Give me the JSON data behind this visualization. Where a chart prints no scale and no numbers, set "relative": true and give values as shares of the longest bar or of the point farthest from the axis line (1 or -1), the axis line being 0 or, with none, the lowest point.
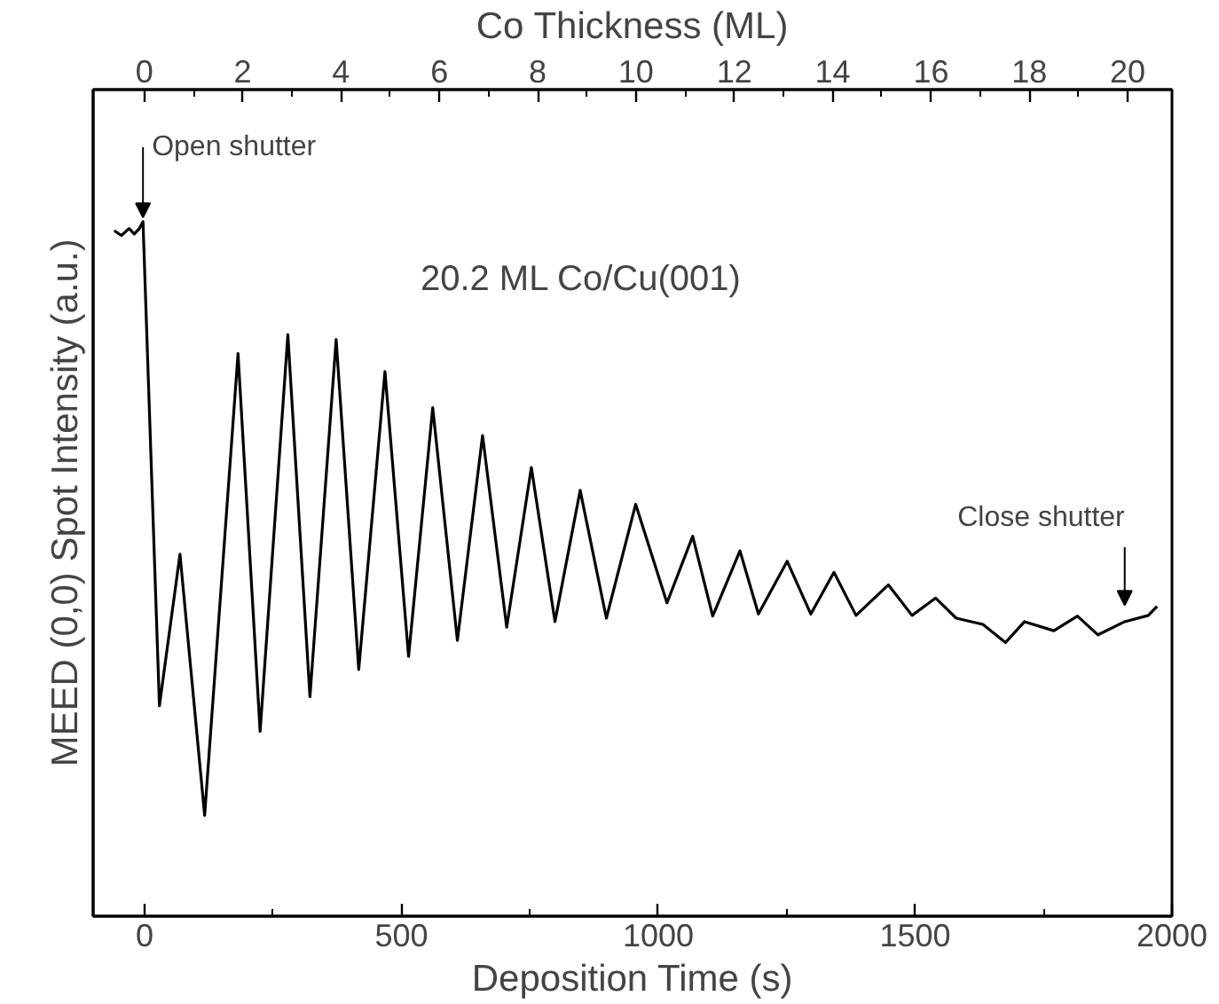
{
  "chart_data": {
    "type": "line",
    "relative": true,
    "xlabel": "Deposition Time (s)",
    "ylabel": "MEED (0,0) Spot Intensity (a.u.)",
    "x2label": "Co Thickness (ML)",
    "xlim": [
      -100,
      2000
    ],
    "xticks": [
      0,
      500,
      1000,
      1500,
      2000
    ],
    "x2lim": [
      -1.04,
      20.9
    ],
    "x2ticks": [
      0,
      2,
      4,
      6,
      8,
      10,
      12,
      14,
      16,
      18,
      20
    ],
    "grid": false,
    "marker": "none",
    "line_style": "solid",
    "tick_labels": "x",
    "annotations": [
      "20.2 ML Co/Cu(001)",
      {
        "text": "Open shutter",
        "x": -3,
        "y": 1.0
      },
      "Close shutter"
    ],
    "series": [
      {
        "color": "#000000",
        "x": [
          -59,
          -45,
          -30,
          -20,
          -10,
          -3,
          29,
          69,
          117,
          182,
          225,
          279,
          322,
          373,
          417,
          468,
          514,
          561,
          609,
          658,
          705,
          753,
          799,
          848,
          899,
          956,
          1017,
          1067,
          1106,
          1159,
          1195,
          1251,
          1297,
          1342,
          1385,
          1448,
          1494,
          1540,
          1580,
          1632,
          1676,
          1713,
          1770,
          1816,
          1856,
          1908,
          1954,
          1971
        ],
        "values": [
          0.987,
          0.98,
          0.99,
          0.982,
          0.99,
          1.0,
          0.303,
          0.521,
          0.145,
          0.81,
          0.266,
          0.837,
          0.316,
          0.83,
          0.355,
          0.784,
          0.374,
          0.732,
          0.397,
          0.692,
          0.416,
          0.646,
          0.424,
          0.613,
          0.429,
          0.593,
          0.451,
          0.547,
          0.432,
          0.526,
          0.435,
          0.511,
          0.435,
          0.495,
          0.433,
          0.477,
          0.433,
          0.458,
          0.429,
          0.42,
          0.394,
          0.424,
          0.411,
          0.432,
          0.405,
          0.424,
          0.433,
          0.446
        ]
      }
    ]
  }
}
